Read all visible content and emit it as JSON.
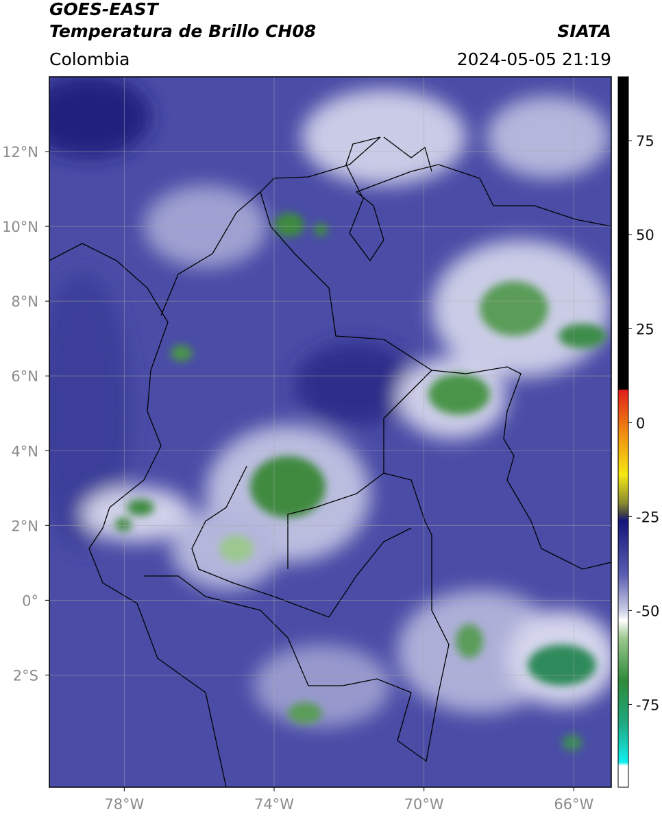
{
  "header": {
    "title": "GOES-EAST",
    "subtitle": "Temperatura de Brillo CH08",
    "source": "SIATA",
    "region": "Colombia",
    "timestamp": "2024-05-05 21:19"
  },
  "map": {
    "xlim": [
      -80,
      -65
    ],
    "ylim": [
      -5,
      14
    ],
    "xticks": [
      {
        "value": -78,
        "label": "78°W"
      },
      {
        "value": -74,
        "label": "74°W"
      },
      {
        "value": -70,
        "label": "70°W"
      },
      {
        "value": -66,
        "label": "66°W"
      }
    ],
    "yticks": [
      {
        "value": 12,
        "label": "12°N"
      },
      {
        "value": 10,
        "label": "10°N"
      },
      {
        "value": 8,
        "label": "8°N"
      },
      {
        "value": 6,
        "label": "6°N"
      },
      {
        "value": 4,
        "label": "4°N"
      },
      {
        "value": 2,
        "label": "2°N"
      },
      {
        "value": 0,
        "label": "0°"
      },
      {
        "value": -2,
        "label": "2°S"
      }
    ],
    "grid": true,
    "colorbar": {
      "lim": [
        -97,
        92
      ],
      "ticks": [
        75,
        50,
        25,
        0,
        -25,
        -50,
        -75
      ]
    }
  }
}
